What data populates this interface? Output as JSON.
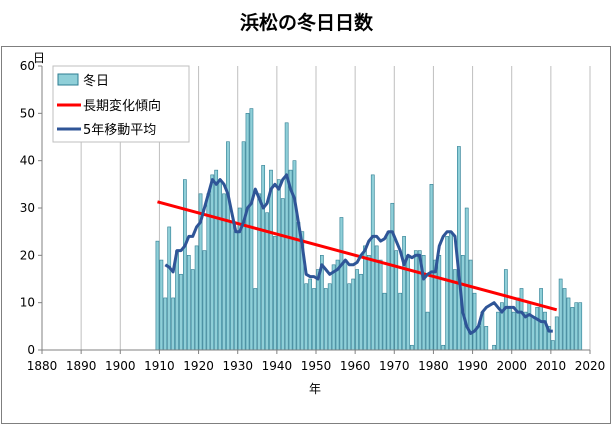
{
  "chart_data": {
    "type": "bar",
    "title": "浜松の冬日日数",
    "xlabel": "年",
    "ylabel": "日",
    "xlim": [
      1880,
      2020
    ],
    "ylim": [
      0,
      60
    ],
    "x_ticks": [
      1880,
      1890,
      1900,
      1910,
      1920,
      1930,
      1940,
      1950,
      1960,
      1970,
      1980,
      1990,
      2000,
      2010,
      2020
    ],
    "y_ticks": [
      0,
      10,
      20,
      30,
      40,
      50,
      60
    ],
    "grid": "vertical",
    "legend_position": "top-left",
    "colors": {
      "bar_fill": "#8fcfd8",
      "bar_stroke": "#2d7d92",
      "trend": "#ff0000",
      "moving_average": "#2f5597",
      "grid": "#bfbfbf"
    },
    "series": [
      {
        "name": "冬日",
        "type": "bar",
        "x": [
          1909,
          1910,
          1911,
          1912,
          1913,
          1914,
          1915,
          1916,
          1917,
          1918,
          1919,
          1920,
          1921,
          1922,
          1923,
          1924,
          1925,
          1926,
          1927,
          1928,
          1929,
          1930,
          1931,
          1932,
          1933,
          1934,
          1935,
          1936,
          1937,
          1938,
          1939,
          1940,
          1941,
          1942,
          1943,
          1944,
          1945,
          1946,
          1947,
          1948,
          1949,
          1950,
          1951,
          1952,
          1953,
          1954,
          1955,
          1956,
          1957,
          1958,
          1959,
          1960,
          1961,
          1962,
          1963,
          1964,
          1965,
          1966,
          1967,
          1968,
          1969,
          1970,
          1971,
          1972,
          1973,
          1974,
          1975,
          1976,
          1977,
          1978,
          1979,
          1980,
          1981,
          1982,
          1983,
          1984,
          1985,
          1986,
          1987,
          1988,
          1989,
          1990,
          1991,
          1992,
          1993,
          1994,
          1995,
          1996,
          1997,
          1998,
          1999,
          2000,
          2001,
          2002,
          2003,
          2004,
          2005,
          2006,
          2007,
          2008,
          2009,
          2010,
          2011,
          2012,
          2013,
          2014,
          2015,
          2016,
          2017
        ],
        "values": [
          23,
          19,
          11,
          26,
          11,
          21,
          16,
          36,
          20,
          17,
          22,
          33,
          21,
          33,
          37,
          38,
          36,
          33,
          44,
          27,
          25,
          30,
          44,
          50,
          51,
          13,
          33,
          39,
          29,
          38,
          24,
          36,
          32,
          48,
          38,
          40,
          27,
          25,
          14,
          15,
          13,
          17,
          20,
          13,
          14,
          18,
          19,
          28,
          19,
          14,
          15,
          17,
          16,
          22,
          20,
          37,
          22,
          19,
          12,
          25,
          31,
          21,
          12,
          24,
          20,
          1,
          21,
          21,
          20,
          8,
          35,
          19,
          20,
          1,
          24,
          25,
          17,
          43,
          20,
          30,
          19,
          12,
          5,
          8,
          5,
          0,
          1,
          8,
          10,
          17,
          9,
          8,
          11,
          13,
          8,
          10,
          7,
          9,
          13,
          8,
          5,
          2,
          7,
          15,
          13,
          11,
          9,
          10,
          10
        ]
      },
      {
        "name": "長期変化傾向",
        "type": "line",
        "x": [
          1909,
          2011
        ],
        "values": [
          31.3,
          8.5
        ]
      },
      {
        "name": "5年移動平均",
        "type": "line",
        "x": [
          1911,
          1912,
          1913,
          1914,
          1915,
          1916,
          1917,
          1918,
          1919,
          1920,
          1921,
          1922,
          1923,
          1924,
          1925,
          1926,
          1927,
          1928,
          1929,
          1930,
          1931,
          1932,
          1933,
          1934,
          1935,
          1936,
          1937,
          1938,
          1939,
          1940,
          1941,
          1942,
          1943,
          1944,
          1945,
          1946,
          1947,
          1948,
          1949,
          1950,
          1951,
          1952,
          1953,
          1954,
          1955,
          1956,
          1957,
          1958,
          1959,
          1960,
          1961,
          1962,
          1963,
          1964,
          1965,
          1966,
          1967,
          1968,
          1969,
          1970,
          1971,
          1972,
          1973,
          1974,
          1975,
          1976,
          1977,
          1978,
          1979,
          1980,
          1981,
          1982,
          1983,
          1984,
          1985,
          1986,
          1987,
          1988,
          1989,
          1990,
          1991,
          1992,
          1993,
          1994,
          1995,
          1996,
          1997,
          1998,
          1999,
          2000,
          2001,
          2002,
          2003,
          2004,
          2005,
          2006,
          2007,
          2008,
          2009,
          2010
        ],
        "values": [
          18,
          17.5,
          16.5,
          21,
          21,
          22,
          24,
          24,
          26,
          27,
          30,
          33,
          36,
          35,
          36,
          35,
          33,
          29,
          25,
          25,
          27,
          30,
          31,
          34,
          32,
          30,
          31,
          34,
          35,
          34,
          36,
          37,
          34,
          32,
          27,
          22,
          16,
          15.5,
          15.5,
          15,
          18,
          17,
          16,
          16.5,
          17,
          18,
          19,
          18,
          18,
          18.5,
          20,
          21,
          23,
          24,
          24,
          23,
          23.5,
          25,
          25,
          23,
          21,
          18,
          20,
          19.5,
          20,
          20,
          15,
          16,
          16.5,
          16.5,
          22,
          24,
          25,
          25,
          24,
          16,
          8,
          5,
          3.5,
          4,
          5,
          8,
          9,
          9.5,
          10,
          9,
          8,
          9,
          9,
          9,
          8,
          8,
          7,
          7.5,
          7,
          6.5,
          6,
          6,
          4,
          4
        ]
      }
    ]
  }
}
